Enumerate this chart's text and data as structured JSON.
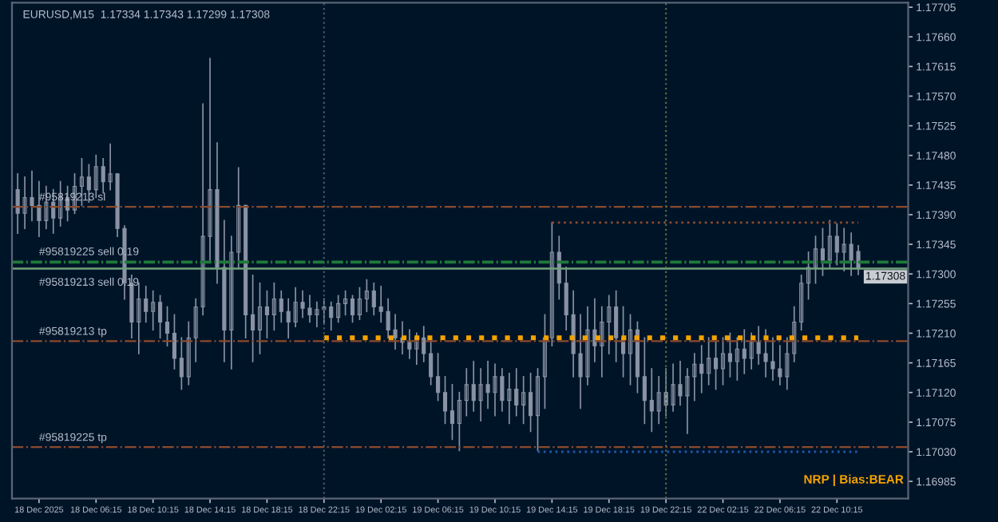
{
  "chart_data": {
    "type": "candlestick",
    "title": "EURUSD,M15  1.17334 1.17343 1.17299 1.17308",
    "categories": [
      null,
      null,
      null,
      "18 Dec 2025",
      null,
      null,
      null,
      null,
      null,
      null,
      null,
      "18 Dec 06:15",
      null,
      null,
      null,
      null,
      null,
      null,
      null,
      "18 Dec 10:15",
      null,
      null,
      null,
      null,
      null,
      null,
      null,
      "18 Dec 14:15",
      null,
      null,
      null,
      null,
      null,
      null,
      null,
      "18 Dec 18:15",
      null,
      null,
      null,
      null,
      null,
      null,
      null,
      "18 Dec 22:15",
      null,
      null,
      null,
      null,
      null,
      null,
      null,
      "19 Dec 02:15",
      null,
      null,
      null,
      null,
      null,
      null,
      null,
      "19 Dec 06:15",
      null,
      null,
      null,
      null,
      null,
      null,
      null,
      "19 Dec 10:15",
      null,
      null,
      null,
      null,
      null,
      null,
      null,
      "19 Dec 14:15",
      null,
      null,
      null,
      null,
      null,
      null,
      null,
      "19 Dec 18:15",
      null,
      null,
      null,
      null,
      null,
      null,
      null,
      "19 Dec 22:15",
      null,
      null,
      null,
      null,
      null,
      null,
      null,
      "22 Dec 02:15",
      null,
      null,
      null,
      null,
      null,
      null,
      null,
      "22 Dec 06:15",
      null,
      null,
      null,
      null,
      null,
      null,
      null,
      "22 Dec 10:15",
      null,
      null,
      null
    ],
    "color": "#8a93a5",
    "ohlc": [
      [
        1.17428,
        1.17452,
        1.17362,
        1.17392
      ],
      [
        1.17392,
        1.17447,
        1.17369,
        1.17416
      ],
      [
        1.17416,
        1.17456,
        1.17381,
        1.17404
      ],
      [
        1.17404,
        1.1744,
        1.17357,
        1.17381
      ],
      [
        1.17381,
        1.17433,
        1.17369,
        1.17409
      ],
      [
        1.17409,
        1.17428,
        1.17362,
        1.17385
      ],
      [
        1.17385,
        1.1744,
        1.17373,
        1.17416
      ],
      [
        1.17416,
        1.17433,
        1.17381,
        1.17397
      ],
      [
        1.17397,
        1.17452,
        1.17392,
        1.17433
      ],
      [
        1.17433,
        1.17475,
        1.17404,
        1.17447
      ],
      [
        1.17447,
        1.17466,
        1.17409,
        1.17428
      ],
      [
        1.17428,
        1.1748,
        1.17416,
        1.17463
      ],
      [
        1.17463,
        1.17475,
        1.17423,
        1.1744
      ],
      [
        1.1744,
        1.17497,
        1.17428,
        1.17452
      ],
      [
        1.17452,
        1.17452,
        1.17357,
        1.17369
      ],
      [
        1.17369,
        1.17373,
        1.17262,
        1.17286
      ],
      [
        1.17286,
        1.17298,
        1.17203,
        1.17227
      ],
      [
        1.17227,
        1.17286,
        1.17179,
        1.17262
      ],
      [
        1.17262,
        1.17281,
        1.17227,
        1.17243
      ],
      [
        1.17243,
        1.17274,
        1.17215,
        1.17257
      ],
      [
        1.17257,
        1.17267,
        1.17203,
        1.17227
      ],
      [
        1.17227,
        1.1725,
        1.17191,
        1.1721
      ],
      [
        1.1721,
        1.17238,
        1.17156,
        1.17172
      ],
      [
        1.17172,
        1.17203,
        1.17125,
        1.17144
      ],
      [
        1.17144,
        1.17227,
        1.17132,
        1.17203
      ],
      [
        1.17203,
        1.17262,
        1.17167,
        1.1725
      ],
      [
        1.1725,
        1.17558,
        1.17238,
        1.17357
      ],
      [
        1.17357,
        1.17627,
        1.17321,
        1.17428
      ],
      [
        1.17428,
        1.17499,
        1.17286,
        1.1731
      ],
      [
        1.1731,
        1.17381,
        1.17167,
        1.17215
      ],
      [
        1.17215,
        1.17357,
        1.17156,
        1.17333
      ],
      [
        1.17333,
        1.17461,
        1.1731,
        1.17404
      ],
      [
        1.17404,
        1.17404,
        1.17203,
        1.17238
      ],
      [
        1.17238,
        1.17298,
        1.17167,
        1.17215
      ],
      [
        1.17215,
        1.17286,
        1.17179,
        1.1725
      ],
      [
        1.1725,
        1.17274,
        1.17203,
        1.17238
      ],
      [
        1.17238,
        1.17286,
        1.17215,
        1.17262
      ],
      [
        1.17262,
        1.17274,
        1.17227,
        1.17243
      ],
      [
        1.17243,
        1.17262,
        1.17203,
        1.17227
      ],
      [
        1.17227,
        1.17279,
        1.1722,
        1.17257
      ],
      [
        1.17257,
        1.17274,
        1.17234,
        1.17248
      ],
      [
        1.17248,
        1.17267,
        1.17227,
        1.17238
      ],
      [
        1.17238,
        1.17257,
        1.1722,
        1.17246
      ],
      [
        1.17246,
        1.17262,
        1.17224,
        1.1725
      ],
      [
        1.1725,
        1.17257,
        1.17215,
        1.17234
      ],
      [
        1.17234,
        1.17267,
        1.17227,
        1.17255
      ],
      [
        1.17255,
        1.17274,
        1.17238,
        1.17262
      ],
      [
        1.17262,
        1.17267,
        1.17227,
        1.17238
      ],
      [
        1.17238,
        1.17279,
        1.17231,
        1.17262
      ],
      [
        1.17262,
        1.17291,
        1.17243,
        1.17274
      ],
      [
        1.17274,
        1.17286,
        1.17238,
        1.1725
      ],
      [
        1.1725,
        1.17281,
        1.17227,
        1.17243
      ],
      [
        1.17243,
        1.17262,
        1.17203,
        1.17215
      ],
      [
        1.17215,
        1.17238,
        1.17186,
        1.17203
      ],
      [
        1.17203,
        1.17227,
        1.17179,
        1.17196
      ],
      [
        1.17196,
        1.17215,
        1.17172,
        1.17186
      ],
      [
        1.17186,
        1.1721,
        1.17163,
        1.17203
      ],
      [
        1.17203,
        1.1722,
        1.17167,
        1.17179
      ],
      [
        1.17179,
        1.17203,
        1.17132,
        1.17144
      ],
      [
        1.17144,
        1.17179,
        1.17108,
        1.1712
      ],
      [
        1.1712,
        1.17144,
        1.17073,
        1.17092
      ],
      [
        1.17092,
        1.17132,
        1.17049,
        1.17073
      ],
      [
        1.17073,
        1.1712,
        1.17032,
        1.17108
      ],
      [
        1.17108,
        1.17156,
        1.17085,
        1.17132
      ],
      [
        1.17132,
        1.17167,
        1.17092,
        1.17108
      ],
      [
        1.17108,
        1.17156,
        1.17077,
        1.17132
      ],
      [
        1.17132,
        1.17167,
        1.17096,
        1.1712
      ],
      [
        1.1712,
        1.17163,
        1.17085,
        1.17144
      ],
      [
        1.17144,
        1.17156,
        1.17092,
        1.17108
      ],
      [
        1.17108,
        1.17149,
        1.17073,
        1.17125
      ],
      [
        1.17125,
        1.17156,
        1.17085,
        1.17101
      ],
      [
        1.17101,
        1.17144,
        1.17073,
        1.1712
      ],
      [
        1.1712,
        1.17149,
        1.17061,
        1.17085
      ],
      [
        1.17085,
        1.17156,
        1.17032,
        1.17144
      ],
      [
        1.17144,
        1.17238,
        1.17096,
        1.17203
      ],
      [
        1.17203,
        1.17378,
        1.17191,
        1.17333
      ],
      [
        1.17333,
        1.17357,
        1.17262,
        1.17286
      ],
      [
        1.17286,
        1.1731,
        1.17215,
        1.17238
      ],
      [
        1.17238,
        1.17274,
        1.17144,
        1.17179
      ],
      [
        1.17179,
        1.17238,
        1.17096,
        1.17144
      ],
      [
        1.17144,
        1.1725,
        1.17132,
        1.17215
      ],
      [
        1.17215,
        1.17262,
        1.17167,
        1.17191
      ],
      [
        1.17191,
        1.1725,
        1.17144,
        1.17227
      ],
      [
        1.17227,
        1.17267,
        1.17179,
        1.1725
      ],
      [
        1.1725,
        1.17274,
        1.17167,
        1.17203
      ],
      [
        1.17203,
        1.1725,
        1.17144,
        1.17179
      ],
      [
        1.17179,
        1.17238,
        1.17132,
        1.17215
      ],
      [
        1.17215,
        1.17227,
        1.1712,
        1.17144
      ],
      [
        1.17144,
        1.17203,
        1.17073,
        1.17108
      ],
      [
        1.17108,
        1.17156,
        1.17061,
        1.17092
      ],
      [
        1.17092,
        1.17144,
        1.17073,
        1.1712
      ],
      [
        1.1712,
        1.17156,
        1.17085,
        1.17101
      ],
      [
        1.17101,
        1.17163,
        1.17092,
        1.17132
      ],
      [
        1.17132,
        1.17167,
        1.17101,
        1.17115
      ],
      [
        1.17115,
        1.17156,
        1.17058,
        1.17144
      ],
      [
        1.17144,
        1.17179,
        1.17108,
        1.17163
      ],
      [
        1.17163,
        1.17191,
        1.1712,
        1.17149
      ],
      [
        1.17149,
        1.17203,
        1.17132,
        1.17172
      ],
      [
        1.17172,
        1.17196,
        1.17125,
        1.17156
      ],
      [
        1.17156,
        1.17203,
        1.17132,
        1.17179
      ],
      [
        1.17179,
        1.1721,
        1.17144,
        1.17167
      ],
      [
        1.17167,
        1.17203,
        1.17139,
        1.17186
      ],
      [
        1.17186,
        1.17215,
        1.17149,
        1.17172
      ],
      [
        1.17172,
        1.1721,
        1.17156,
        1.17196
      ],
      [
        1.17196,
        1.1722,
        1.17163,
        1.17179
      ],
      [
        1.17179,
        1.17215,
        1.17144,
        1.17167
      ],
      [
        1.17167,
        1.17203,
        1.17139,
        1.17156
      ],
      [
        1.17156,
        1.17191,
        1.17132,
        1.17144
      ],
      [
        1.17144,
        1.17203,
        1.17125,
        1.17179
      ],
      [
        1.17179,
        1.1725,
        1.17167,
        1.17227
      ],
      [
        1.17227,
        1.17298,
        1.17215,
        1.17286
      ],
      [
        1.17286,
        1.17333,
        1.17262,
        1.1731
      ],
      [
        1.1731,
        1.17357,
        1.17286,
        1.17338
      ],
      [
        1.17338,
        1.17369,
        1.17298,
        1.17321
      ],
      [
        1.17321,
        1.17381,
        1.1731,
        1.17357
      ],
      [
        1.17357,
        1.17376,
        1.17314,
        1.17333
      ],
      [
        1.17333,
        1.17369,
        1.17305,
        1.17345
      ],
      [
        1.17345,
        1.17362,
        1.17298,
        1.17321
      ],
      [
        1.17334,
        1.17343,
        1.17299,
        1.17308
      ]
    ],
    "series": [
      {
        "type": "line",
        "color": "#f5a300",
        "line_style": "dotted",
        "values": [
          null,
          null,
          null,
          null,
          null,
          null,
          null,
          null,
          null,
          null,
          null,
          null,
          null,
          null,
          null,
          null,
          null,
          null,
          null,
          null,
          null,
          null,
          null,
          null,
          null,
          null,
          null,
          null,
          null,
          null,
          null,
          null,
          null,
          null,
          null,
          null,
          null,
          null,
          null,
          null,
          null,
          null,
          null,
          1.17203,
          1.17203,
          1.17203,
          1.17203,
          1.17203,
          1.17203,
          1.17203,
          1.17203,
          1.17203,
          1.17203,
          1.17203,
          1.17203,
          1.17203,
          1.17203,
          1.17203,
          1.17203,
          1.17203,
          1.17203,
          1.17203,
          1.17203,
          1.17203,
          1.17203,
          1.17203,
          1.17203,
          1.17203,
          1.17203,
          1.17203,
          1.17203,
          1.17203,
          1.17203,
          1.17203,
          1.17203,
          1.17203,
          1.17203,
          1.17203,
          1.17203,
          1.17203,
          1.17203,
          1.17203,
          1.17203,
          1.17203,
          1.17203,
          1.17203,
          1.17203,
          1.17203,
          1.17203,
          1.17203,
          1.17203,
          1.17203,
          1.17203,
          1.17203,
          1.17203,
          1.17203,
          1.17203,
          1.17203,
          1.17203,
          1.17203,
          1.17203,
          1.17203,
          1.17203,
          1.17203,
          1.17203,
          1.17203,
          1.17203,
          1.17203,
          1.17203,
          1.17203,
          1.17203,
          1.17203,
          1.17203,
          1.17203,
          1.17203,
          1.17203,
          1.17203,
          1.17203,
          1.17203
        ]
      },
      {
        "type": "line",
        "color": "#8c4a2c",
        "line_style": "dotted",
        "values": [
          null,
          null,
          null,
          null,
          null,
          null,
          null,
          null,
          null,
          null,
          null,
          null,
          null,
          null,
          null,
          null,
          null,
          null,
          null,
          null,
          null,
          null,
          null,
          null,
          null,
          null,
          null,
          null,
          null,
          null,
          null,
          null,
          null,
          null,
          null,
          null,
          null,
          null,
          null,
          null,
          null,
          null,
          null,
          null,
          null,
          null,
          null,
          null,
          null,
          null,
          null,
          null,
          null,
          null,
          null,
          null,
          null,
          null,
          null,
          null,
          null,
          null,
          null,
          null,
          null,
          null,
          null,
          null,
          null,
          null,
          null,
          null,
          null,
          null,
          null,
          1.17378,
          1.17378,
          1.17378,
          1.17378,
          1.17378,
          1.17378,
          1.17378,
          1.17378,
          1.17378,
          1.17378,
          1.17378,
          1.17378,
          1.17378,
          1.17378,
          1.17378,
          1.17378,
          1.17378,
          1.17378,
          1.17378,
          1.17378,
          1.17378,
          1.17378,
          1.17378,
          1.17378,
          1.17378,
          1.17378,
          1.17378,
          1.17378,
          1.17378,
          1.17378,
          1.17378,
          1.17378,
          1.17378,
          1.17378,
          1.17378,
          1.17378,
          1.17378,
          1.17378,
          1.17378,
          1.17378,
          1.17378,
          1.17378,
          1.17378,
          1.17378
        ]
      },
      {
        "type": "line",
        "color": "#1f55a8",
        "line_style": "dotted",
        "values": [
          null,
          null,
          null,
          null,
          null,
          null,
          null,
          null,
          null,
          null,
          null,
          null,
          null,
          null,
          null,
          null,
          null,
          null,
          null,
          null,
          null,
          null,
          null,
          null,
          null,
          null,
          null,
          null,
          null,
          null,
          null,
          null,
          null,
          null,
          null,
          null,
          null,
          null,
          null,
          null,
          null,
          null,
          null,
          null,
          null,
          null,
          null,
          null,
          null,
          null,
          null,
          null,
          null,
          null,
          null,
          null,
          null,
          null,
          null,
          null,
          null,
          null,
          null,
          null,
          null,
          null,
          null,
          null,
          null,
          null,
          null,
          null,
          null,
          1.1703,
          1.1703,
          1.1703,
          1.1703,
          1.1703,
          1.1703,
          1.1703,
          1.1703,
          1.1703,
          1.1703,
          1.1703,
          1.1703,
          1.1703,
          1.1703,
          1.1703,
          1.1703,
          1.1703,
          1.1703,
          1.1703,
          1.1703,
          1.1703,
          1.1703,
          1.1703,
          1.1703,
          1.1703,
          1.1703,
          1.1703,
          1.1703,
          1.1703,
          1.1703,
          1.1703,
          1.1703,
          1.1703,
          1.1703,
          1.1703,
          1.1703,
          1.1703,
          1.1703,
          1.1703,
          1.1703,
          1.1703,
          1.1703,
          1.1703,
          1.1703,
          1.1703,
          1.1703
        ]
      }
    ],
    "ylim": [
      1.16959,
      1.17712
    ],
    "yticks": [
      1.16985,
      {
        "value": 1.1703,
        "label": "1.17030"
      },
      1.17075,
      {
        "value": 1.1712,
        "label": "1.17120"
      },
      1.17165,
      {
        "value": 1.1721,
        "label": "1.17210"
      },
      1.17255,
      {
        "value": 1.173,
        "label": "1.17300"
      },
      1.17345,
      {
        "value": 1.1739,
        "label": "1.17390"
      },
      1.17435,
      {
        "value": 1.1748,
        "label": "1.17480"
      },
      1.17525,
      {
        "value": 1.1757,
        "label": "1.17570"
      },
      1.17615,
      {
        "value": 1.1766,
        "label": "1.17660"
      },
      1.17705
    ],
    "ref_lines": [
      {
        "axis": "y",
        "value": 1.17402,
        "label": "#95819213 sl",
        "color": "#8c4a2c",
        "line_style": "dashed"
      },
      {
        "axis": "y",
        "value": 1.17319,
        "label": "#95819225 sell 0.19",
        "color": "#1f7a3a",
        "line_style": "dashed"
      },
      {
        "axis": "y",
        "value": 1.17317,
        "label": "#95819213 sell 0.19",
        "color": "#1f7a3a",
        "line_style": "dashed"
      },
      {
        "axis": "y",
        "value": 1.17308,
        "label": "1.17308",
        "color": "#6fa27a",
        "line_style": "solid"
      },
      {
        "axis": "y",
        "value": 1.17198,
        "label": "#95819213 tp",
        "color": "#8c4a2c",
        "line_style": "dashed"
      },
      {
        "axis": "y",
        "value": 1.17037,
        "label": "#95819225 tp",
        "color": "#8c4a2c",
        "line_style": "dashed"
      },
      {
        "axis": "x",
        "value": "18 Dec 22:15",
        "color": "#4a5568",
        "line_style": "dotted"
      },
      {
        "axis": "x",
        "value": "19 Dec 22:15",
        "color": "#5b6b3a",
        "line_style": "dotted"
      }
    ],
    "annotations": [
      "NRP | Bias:BEAR"
    ],
    "grid": false,
    "legend": false
  }
}
